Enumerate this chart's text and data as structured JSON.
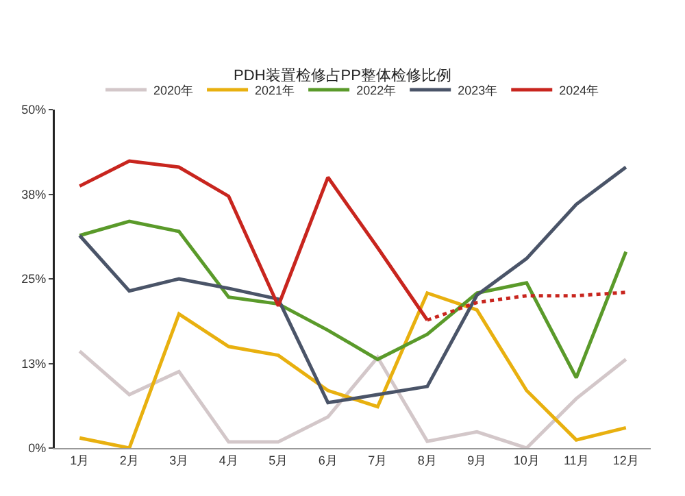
{
  "chart_data": {
    "type": "line",
    "title": "PDH装置检修占PP整体检修比例",
    "categories": [
      "1月",
      "2月",
      "3月",
      "4月",
      "5月",
      "6月",
      "7月",
      "8月",
      "9月",
      "10月",
      "11月",
      "12月"
    ],
    "series": [
      {
        "name": "2020年",
        "color": "#d3c7c9",
        "values": [
          14.3,
          7.9,
          11.3,
          0.9,
          0.9,
          4.6,
          13.4,
          1,
          2.4,
          0,
          7.3,
          13.1
        ]
      },
      {
        "name": "2021年",
        "color": "#e8b00f",
        "values": [
          1.5,
          0,
          19.8,
          15,
          13.7,
          8.5,
          6.1,
          22.9,
          20.4,
          8.5,
          1.2,
          3
        ]
      },
      {
        "name": "2022年",
        "color": "#5a9a2a",
        "values": [
          31.4,
          33.5,
          32,
          22.3,
          21.3,
          17.4,
          13.1,
          16.8,
          22.9,
          24.4,
          10.4,
          29
        ]
      },
      {
        "name": "2023年",
        "color": "#4a5468",
        "values": [
          31.4,
          23.2,
          25,
          23.6,
          22,
          6.7,
          7.9,
          9.1,
          22.6,
          28,
          36,
          41.5
        ]
      },
      {
        "name": "2024年",
        "color": "#c8251e",
        "values": [
          38.7,
          42.4,
          41.5,
          37.2,
          21,
          40,
          29.6,
          18.9,
          null,
          null,
          null,
          null
        ]
      },
      {
        "color": "#c8251e",
        "line_style": "dotted",
        "values": [
          null,
          null,
          null,
          null,
          null,
          null,
          null,
          18.9,
          21.5,
          22.5,
          22.5,
          23
        ]
      }
    ],
    "ylim": [
      0,
      50
    ],
    "yticks": [
      {
        "value": 0,
        "label": "0%"
      },
      {
        "value": 12.5,
        "label": "13%"
      },
      {
        "value": 25,
        "label": "25%"
      },
      {
        "value": 37.5,
        "label": "38%"
      },
      {
        "value": 50,
        "label": "50%"
      }
    ],
    "grid": false,
    "legend": "top",
    "marker": "none",
    "line_style": "solid"
  }
}
